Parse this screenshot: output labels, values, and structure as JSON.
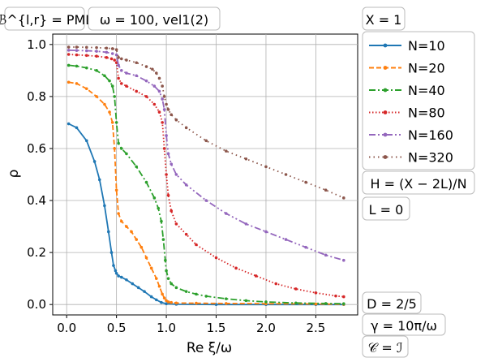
{
  "chart_data": {
    "type": "line",
    "xlabel": "Re ξ/ω",
    "ylabel": "ρ",
    "xlim": [
      -0.14,
      2.92
    ],
    "ylim": [
      -0.04,
      1.04
    ],
    "xticks": [
      "0.0",
      "0.5",
      "1.0",
      "1.5",
      "2.0",
      "2.5"
    ],
    "yticks": [
      "0.0",
      "0.2",
      "0.4",
      "0.6",
      "0.8",
      "1.0"
    ],
    "grid": true,
    "legend_position": "right",
    "annotations": {
      "top_left": "ℬ^{l,r} = PML",
      "top_mid": "ω = 100, vel1(2)",
      "top_right": "X = 1",
      "right_1": "H = (X − 2L)/N",
      "right_2": "L = 0",
      "bottom_1": "D = 2/5",
      "bottom_2": "γ = 10π/ω",
      "bottom_3": "𝒞 = ℐ"
    },
    "series": [
      {
        "name": "N=10",
        "color": "#1f77b4",
        "linestyle": "solid",
        "marker": "dot",
        "x": [
          0.02,
          0.1,
          0.2,
          0.28,
          0.33,
          0.38,
          0.42,
          0.45,
          0.47,
          0.49,
          0.5,
          0.52,
          0.55,
          0.6,
          0.66,
          0.72,
          0.78,
          0.85,
          0.9,
          0.95,
          1.0,
          1.1,
          1.5,
          2.0,
          2.5,
          2.78
        ],
        "y": [
          0.695,
          0.68,
          0.63,
          0.55,
          0.48,
          0.38,
          0.28,
          0.2,
          0.15,
          0.13,
          0.12,
          0.11,
          0.105,
          0.095,
          0.08,
          0.065,
          0.05,
          0.03,
          0.018,
          0.008,
          0.003,
          0.001,
          0.0,
          0.0,
          0.0,
          0.0
        ]
      },
      {
        "name": "N=20",
        "color": "#ff7f0e",
        "linestyle": "dashed",
        "marker": "dot",
        "x": [
          0.02,
          0.1,
          0.2,
          0.3,
          0.38,
          0.43,
          0.46,
          0.48,
          0.5,
          0.52,
          0.55,
          0.6,
          0.65,
          0.7,
          0.75,
          0.8,
          0.85,
          0.9,
          0.93,
          0.96,
          0.98,
          1.0,
          1.02,
          1.05,
          1.1,
          1.3,
          1.6,
          2.0,
          2.5,
          2.78
        ],
        "y": [
          0.855,
          0.85,
          0.83,
          0.8,
          0.77,
          0.74,
          0.7,
          0.6,
          0.44,
          0.35,
          0.32,
          0.3,
          0.28,
          0.25,
          0.22,
          0.18,
          0.14,
          0.1,
          0.07,
          0.04,
          0.025,
          0.015,
          0.01,
          0.008,
          0.006,
          0.005,
          0.004,
          0.003,
          0.002,
          0.001
        ]
      },
      {
        "name": "N=40",
        "color": "#2ca02c",
        "linestyle": "dashdot",
        "marker": "dot",
        "x": [
          0.02,
          0.1,
          0.2,
          0.3,
          0.38,
          0.43,
          0.46,
          0.48,
          0.5,
          0.52,
          0.55,
          0.6,
          0.7,
          0.8,
          0.88,
          0.92,
          0.95,
          0.97,
          0.99,
          1.0,
          1.02,
          1.05,
          1.1,
          1.2,
          1.3,
          1.4,
          1.6,
          1.8,
          2.0,
          2.3,
          2.6,
          2.78
        ],
        "y": [
          0.92,
          0.917,
          0.91,
          0.9,
          0.88,
          0.86,
          0.84,
          0.8,
          0.7,
          0.62,
          0.6,
          0.58,
          0.53,
          0.47,
          0.41,
          0.37,
          0.32,
          0.25,
          0.17,
          0.13,
          0.1,
          0.08,
          0.065,
          0.05,
          0.04,
          0.032,
          0.022,
          0.015,
          0.01,
          0.006,
          0.004,
          0.003
        ]
      },
      {
        "name": "N=80",
        "color": "#d62728",
        "linestyle": "dotted",
        "marker": "dot",
        "x": [
          0.02,
          0.1,
          0.2,
          0.3,
          0.4,
          0.45,
          0.48,
          0.5,
          0.52,
          0.55,
          0.6,
          0.7,
          0.8,
          0.88,
          0.93,
          0.96,
          0.98,
          1.0,
          1.02,
          1.05,
          1.1,
          1.2,
          1.3,
          1.5,
          1.7,
          1.9,
          2.1,
          2.3,
          2.5,
          2.7,
          2.78
        ],
        "y": [
          0.962,
          0.96,
          0.958,
          0.955,
          0.95,
          0.945,
          0.94,
          0.93,
          0.87,
          0.85,
          0.84,
          0.82,
          0.8,
          0.77,
          0.74,
          0.7,
          0.6,
          0.5,
          0.42,
          0.36,
          0.31,
          0.27,
          0.23,
          0.18,
          0.14,
          0.11,
          0.08,
          0.06,
          0.045,
          0.033,
          0.03
        ]
      },
      {
        "name": "N=160",
        "color": "#9467bd",
        "linestyle": "dashdotdot",
        "marker": "dot",
        "x": [
          0.02,
          0.1,
          0.2,
          0.3,
          0.4,
          0.46,
          0.5,
          0.52,
          0.55,
          0.6,
          0.7,
          0.8,
          0.88,
          0.93,
          0.96,
          0.98,
          1.0,
          1.02,
          1.05,
          1.1,
          1.2,
          1.4,
          1.6,
          1.8,
          2.0,
          2.2,
          2.4,
          2.6,
          2.78
        ],
        "y": [
          0.978,
          0.977,
          0.976,
          0.974,
          0.97,
          0.965,
          0.96,
          0.92,
          0.9,
          0.89,
          0.88,
          0.86,
          0.84,
          0.82,
          0.79,
          0.75,
          0.65,
          0.58,
          0.54,
          0.5,
          0.46,
          0.4,
          0.35,
          0.31,
          0.28,
          0.25,
          0.22,
          0.19,
          0.17
        ]
      },
      {
        "name": "N=320",
        "color": "#8c564b",
        "linestyle": "loosedot",
        "marker": "dot",
        "x": [
          0.02,
          0.1,
          0.2,
          0.3,
          0.4,
          0.46,
          0.5,
          0.52,
          0.55,
          0.6,
          0.7,
          0.8,
          0.86,
          0.9,
          0.93,
          0.96,
          0.98,
          1.0,
          1.02,
          1.05,
          1.1,
          1.2,
          1.4,
          1.6,
          1.8,
          2.0,
          2.2,
          2.4,
          2.6,
          2.78
        ],
        "y": [
          0.99,
          0.99,
          0.989,
          0.988,
          0.986,
          0.984,
          0.98,
          0.95,
          0.945,
          0.94,
          0.93,
          0.915,
          0.905,
          0.89,
          0.87,
          0.84,
          0.8,
          0.77,
          0.75,
          0.73,
          0.71,
          0.68,
          0.63,
          0.59,
          0.56,
          0.53,
          0.5,
          0.47,
          0.44,
          0.41
        ]
      }
    ]
  }
}
